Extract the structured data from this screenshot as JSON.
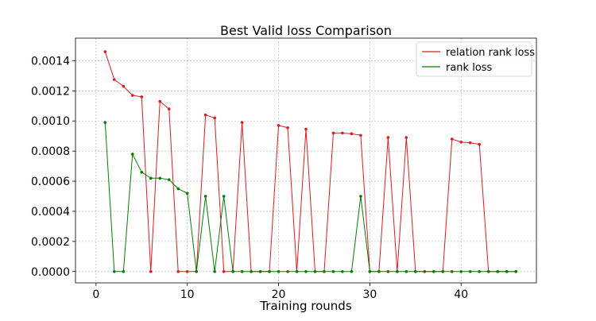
{
  "chart_data": {
    "type": "line",
    "title": "Best Valid loss Comparison",
    "xlabel": "Training rounds",
    "ylabel": "",
    "xlim": [
      -2.25,
      48.25
    ],
    "ylim": [
      -7.5e-05,
      0.00155
    ],
    "x_ticks": [
      0,
      10,
      20,
      30,
      40
    ],
    "y_ticks": [
      0.0,
      0.0002,
      0.0004,
      0.0006,
      0.0008,
      0.001,
      0.0012,
      0.0014
    ],
    "y_tick_labels": [
      "0.0000",
      "0.0002",
      "0.0004",
      "0.0006",
      "0.0008",
      "0.0010",
      "0.0012",
      "0.0014"
    ],
    "grid": true,
    "legend_position": "top-right",
    "x": [
      1,
      2,
      3,
      4,
      5,
      6,
      7,
      8,
      9,
      10,
      11,
      12,
      13,
      14,
      15,
      16,
      17,
      18,
      19,
      20,
      21,
      22,
      23,
      24,
      25,
      26,
      27,
      28,
      29,
      30,
      31,
      32,
      33,
      34,
      35,
      36,
      37,
      38,
      39,
      40,
      41,
      42,
      43,
      44,
      45,
      46
    ],
    "series": [
      {
        "name": "relation rank loss",
        "color": "#e31a1c",
        "values": [
          0.00146,
          0.001275,
          0.00123,
          0.00117,
          0.00116,
          0.0,
          0.00113,
          0.00108,
          0.0,
          0.0,
          0.0,
          0.00104,
          0.00102,
          0.0,
          0.0,
          0.00099,
          0.0,
          0.0,
          0.0,
          0.00097,
          0.000955,
          0.0,
          0.000945,
          0.0,
          0.0,
          0.00092,
          0.00092,
          0.000915,
          0.000905,
          0.0,
          0.0,
          0.00089,
          0.0,
          0.00089,
          0.0,
          0.0,
          0.0,
          0.0,
          0.00088,
          0.00086,
          0.000855,
          0.000845,
          0.0,
          0.0,
          0.0,
          0.0
        ]
      },
      {
        "name": "rank loss",
        "color": "#008000",
        "values": [
          0.00099,
          0.0,
          0.0,
          0.00078,
          0.00066,
          0.00062,
          0.00062,
          0.00061,
          0.00055,
          0.00052,
          0.0,
          0.0005,
          0.0,
          0.0005,
          0.0,
          0.0,
          0.0,
          0.0,
          0.0,
          0.0,
          0.0,
          0.0,
          0.0,
          0.0,
          0.0,
          0.0,
          0.0,
          0.0,
          0.0005,
          0.0,
          0.0,
          0.0,
          0.0,
          0.0,
          0.0,
          0.0,
          0.0,
          0.0,
          0.0,
          0.0,
          0.0,
          0.0,
          0.0,
          0.0,
          0.0,
          0.0
        ]
      }
    ]
  }
}
